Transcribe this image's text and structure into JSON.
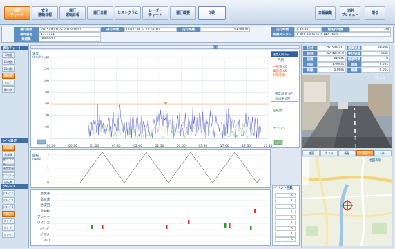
{
  "toolbar": {
    "buttons": [
      {
        "label": "運行\nチャート",
        "active": true
      },
      {
        "label": "安全\n運転日報",
        "active": false
      },
      {
        "label": "運行\n運転日報",
        "active": false
      },
      {
        "label": "運行日報",
        "active": false
      },
      {
        "label": "ヒストグラム",
        "active": false
      },
      {
        "label": "レーダー\nチャート",
        "active": false
      },
      {
        "label": "運行概要",
        "active": false
      }
    ],
    "print_label": "印刷",
    "right_buttons": [
      "日報編集",
      "印刷\nプレビュー",
      "閉る"
    ]
  },
  "info": {
    "row1": [
      {
        "label": "運行期間",
        "value": "2015/04/01 〜 2015/04/01"
      },
      {
        "label": "運行時間",
        "value": "00:00:00 〜 17:59:10"
      },
      {
        "label": "走行距離",
        "value": "41.66km"
      },
      {
        "label": "走行時間",
        "value": "7:33:40"
      },
      {
        "label": "総走行時間",
        "value": "23時"
      }
    ],
    "row2": [
      {
        "label": "車両番号",
        "value": "1111111"
      },
      {
        "label": "距離メーター",
        "value": "1,301.34km 〜 2,392.76km"
      }
    ],
    "row3": [
      {
        "label": "乗務員",
        "value": "0000000"
      }
    ]
  },
  "sidebar": {
    "chart_header": "表示チャート",
    "chart_buttons": [
      "1時間",
      "12時間",
      "24時間",
      "48時間",
      "ﾄﾘｯﾌﾟ",
      "最小化"
    ],
    "setting_header": "ｲﾍﾞﾝﾄ設定",
    "setting_buttons": [
      "急加速",
      "急減速",
      "急ハンドル",
      "速度超過",
      "エンジン",
      "回転数"
    ],
    "sub_header": "グループ",
    "sub_buttons": [
      "ｸﾞﾙｰﾌﾟ1",
      "ｸﾞﾙｰﾌﾟ2",
      "ｸﾞﾙｰﾌﾟ3",
      "表示",
      "ｸﾞﾙｰﾌﾟ",
      "ｸﾞﾙｰﾌﾟ",
      "ｸﾞﾙｰﾌﾟ"
    ]
  },
  "chart": {
    "speed_axis_title": "速度\n(km/h)",
    "speed_ticks": [
      "140",
      "120",
      "100",
      "80",
      "60",
      "40",
      "20"
    ],
    "time_ticks": [
      "00:00",
      "00:30",
      "01:00",
      "01:30",
      "02:00",
      "02:30",
      "03:00",
      "03:30",
      "17:00",
      "17:30",
      "17:40"
    ],
    "rpm_axis_title": "回転\n(rpm)",
    "rpm_ticks": [
      "2",
      "1",
      "0"
    ],
    "event_labels": [
      "急加速",
      "急減速",
      "急旋回",
      "急制動",
      "ブレーキ",
      "ウインカ",
      "ﾊｻﾞｰﾄﾞ",
      "ﾊﾟｲﾛｯﾄ",
      "PTO"
    ],
    "legend": {
      "title": "速度凡例表示",
      "subtitle": "凡例",
      "items": [
        "一般道 60",
        "高速道 80",
        "制限速度"
      ],
      "status": [
        "速度超過 0回",
        "急加速 0回"
      ],
      "green_labels": [
        "回転数",
        "エンジン"
      ]
    },
    "event_panel_title": "イベント回数",
    "event_counts": [
      "0",
      "0",
      "0",
      "0",
      "0",
      "0",
      "0",
      "0",
      "0"
    ],
    "series_color_speed": "#5a5ad6",
    "series_color_rpm": "#6ab06a"
  },
  "right_panel": {
    "stats": [
      {
        "label": "日付",
        "value": "2015/04/01"
      },
      {
        "label": "時刻",
        "value": "17:40:45.0"
      },
      {
        "label": "速度",
        "value": "8km/h"
      },
      {
        "label": "回転",
        "value": "1.00km"
      },
      {
        "label": "距離",
        "value": "5.00m"
      }
    ],
    "stats2": [
      {
        "label": "最高速度",
        "value": "0km/h"
      },
      {
        "label": "平均速度",
        "value": "0km"
      },
      {
        "label": "経過時間",
        "value": "18"
      },
      {
        "label": "燃料",
        "value": "0.00L"
      },
      {
        "label": "燃費",
        "value": "0.00L"
      }
    ],
    "camera_label": "ドラレコ",
    "map_tabs": [
      "地図",
      "カメラ",
      "衛星",
      "表示",
      "ﾚｲﾔｰ"
    ],
    "map_search": "地図表示"
  },
  "scrollbar": {
    "position_label": "⇔"
  }
}
